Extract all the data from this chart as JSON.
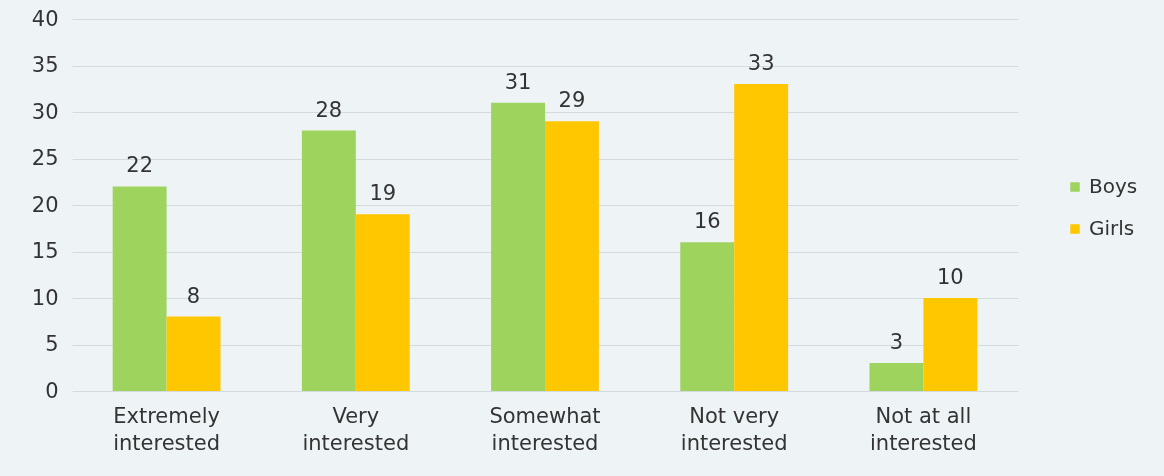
{
  "chart_data": {
    "type": "bar",
    "categories": [
      "Extremely interested",
      "Very interested",
      "Somewhat interested",
      "Not very interested",
      "Not at all interested"
    ],
    "series": [
      {
        "name": "Boys",
        "color": "#9ed35e",
        "values": [
          22,
          28,
          31,
          16,
          3
        ]
      },
      {
        "name": "Girls",
        "color": "#ffc700",
        "values": [
          8,
          19,
          29,
          33,
          10
        ]
      }
    ],
    "ylim": [
      0,
      40
    ],
    "yticks": [
      0,
      5,
      10,
      15,
      20,
      25,
      30,
      35,
      40
    ],
    "grid": "y",
    "legend": "right",
    "data_labels": true
  }
}
